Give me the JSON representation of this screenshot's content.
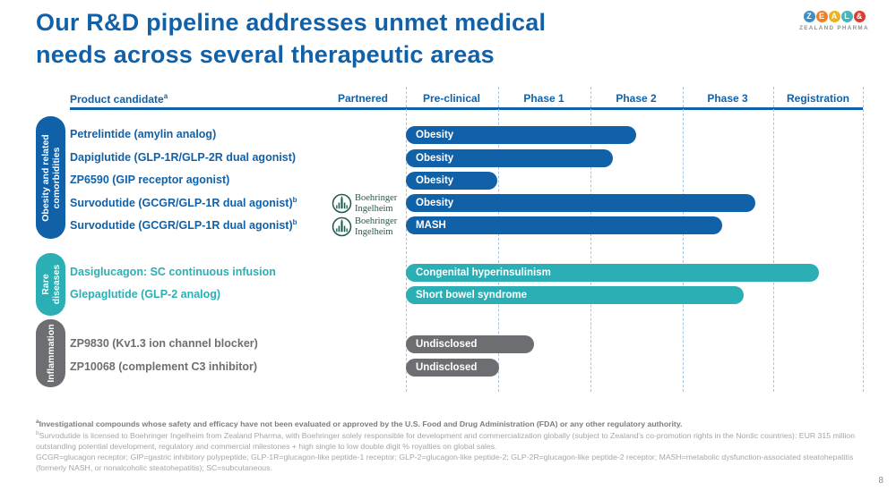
{
  "slide": {
    "title_line1": "Our R&D pipeline addresses unmet medical",
    "title_line2": "needs across several therapeutic areas",
    "page_number": "8"
  },
  "logo": {
    "letters": [
      {
        "char": "Z",
        "color": "#3e8ec6"
      },
      {
        "char": "E",
        "color": "#ee8023"
      },
      {
        "char": "A",
        "color": "#edb11f"
      },
      {
        "char": "L",
        "color": "#44b5bd"
      },
      {
        "char": "&",
        "color": "#e0392e"
      }
    ],
    "wordmark": "ZEALAND PHARMA"
  },
  "table": {
    "columns": [
      "Product candidate",
      "Partnered",
      "Pre-clinical",
      "Phase 1",
      "Phase 2",
      "Phase 3",
      "Registration"
    ],
    "product_candidate_sup": "a"
  },
  "groups": [
    {
      "label": "Obesity and related comorbidities"
    },
    {
      "label": "Rare diseases"
    },
    {
      "label": "Inflammation"
    }
  ],
  "partner": {
    "name_line1": "Boehringer",
    "name_line2": "Ingelheim"
  },
  "chart_data": {
    "type": "bar",
    "subtype": "horizontal-pipeline-gantt",
    "phase_columns": [
      "Pre-clinical",
      "Phase 1",
      "Phase 2",
      "Phase 3",
      "Registration"
    ],
    "phase_axis_note": "end_phase measured in column units: 1=end of Pre-clinical, 2=end of Phase 1, 3=end of Phase 2, 4=end of Phase 3, 5=end of Registration",
    "rows": [
      {
        "product": "Petrelintide (amylin analog)",
        "group": "Obesity and related comorbidities",
        "indication": "Obesity",
        "end_phase": 2.52,
        "color": "blue"
      },
      {
        "product": "Dapiglutide (GLP-1R/GLP-2R dual agonist)",
        "group": "Obesity and related comorbidities",
        "indication": "Obesity",
        "end_phase": 2.26,
        "color": "blue"
      },
      {
        "product": "ZP6590 (GIP receptor agonist)",
        "group": "Obesity and related comorbidities",
        "indication": "Obesity",
        "end_phase": 1.0,
        "color": "blue"
      },
      {
        "product": "Survodutide (GCGR/GLP-1R dual agonist)",
        "sup": "b",
        "partner": "Boehringer Ingelheim",
        "group": "Obesity and related comorbidities",
        "indication": "Obesity",
        "end_phase": 3.82,
        "color": "blue"
      },
      {
        "product": "Survodutide (GCGR/GLP-1R dual agonist)",
        "sup": "b",
        "partner": "Boehringer Ingelheim",
        "group": "Obesity and related comorbidities",
        "indication": "MASH",
        "end_phase": 3.46,
        "color": "blue"
      },
      {
        "product": "Dasiglucagon: SC continuous infusion",
        "group": "Rare diseases",
        "indication": "Congenital hyperinsulinism",
        "end_phase": 4.52,
        "color": "teal"
      },
      {
        "product": "Glepaglutide (GLP-2 analog)",
        "group": "Rare diseases",
        "indication": "Short bowel syndrome",
        "end_phase": 3.7,
        "color": "teal"
      },
      {
        "product": "ZP9830 (Kv1.3 ion channel blocker)",
        "group": "Inflammation",
        "indication": "Undisclosed",
        "end_phase": 1.4,
        "color": "gray"
      },
      {
        "product": "ZP10068 (complement C3 inhibitor)",
        "group": "Inflammation",
        "indication": "Undisclosed",
        "end_phase": 1.02,
        "color": "gray"
      }
    ]
  },
  "colors": {
    "blue": "#1161a9",
    "teal": "#2bafb4",
    "gray": "#6d6e71",
    "partner_green": "#1c5a50",
    "line_blue": "#a5c5e2",
    "footnote_dark": "#7d7d7d",
    "footnote_light": "#a6a6a6"
  },
  "footnotes": {
    "a_sup": "a",
    "a_text": "Investigational compounds whose safety and efficacy have not been evaluated or approved by the U.S. Food and Drug Administration (FDA) or any other regulatory authority.",
    "b_sup": "b",
    "b_text": "Survodutide is licensed to Boehringer Ingelheim from Zealand Pharma, with Boehringer solely responsible for development and commercialization globally (subject to Zealand's co-promotion rights in the Nordic countries): EUR 315 million outstanding potential development, regulatory and commercial milestones + high single to low double digit % royalties on global sales.",
    "glossary": "GCGR=glucagon receptor; GIP=gastric inhibitory polypeptide; GLP-1R=glucagon-like peptide-1 receptor; GLP-2=glucagon-like peptide-2; GLP-2R=glucagon-like peptide-2 receptor; MASH=metabolic dysfunction-associated steatohepatitis (formerly NASH, or nonalcoholic steatohepatitis); SC=subcutaneous."
  }
}
